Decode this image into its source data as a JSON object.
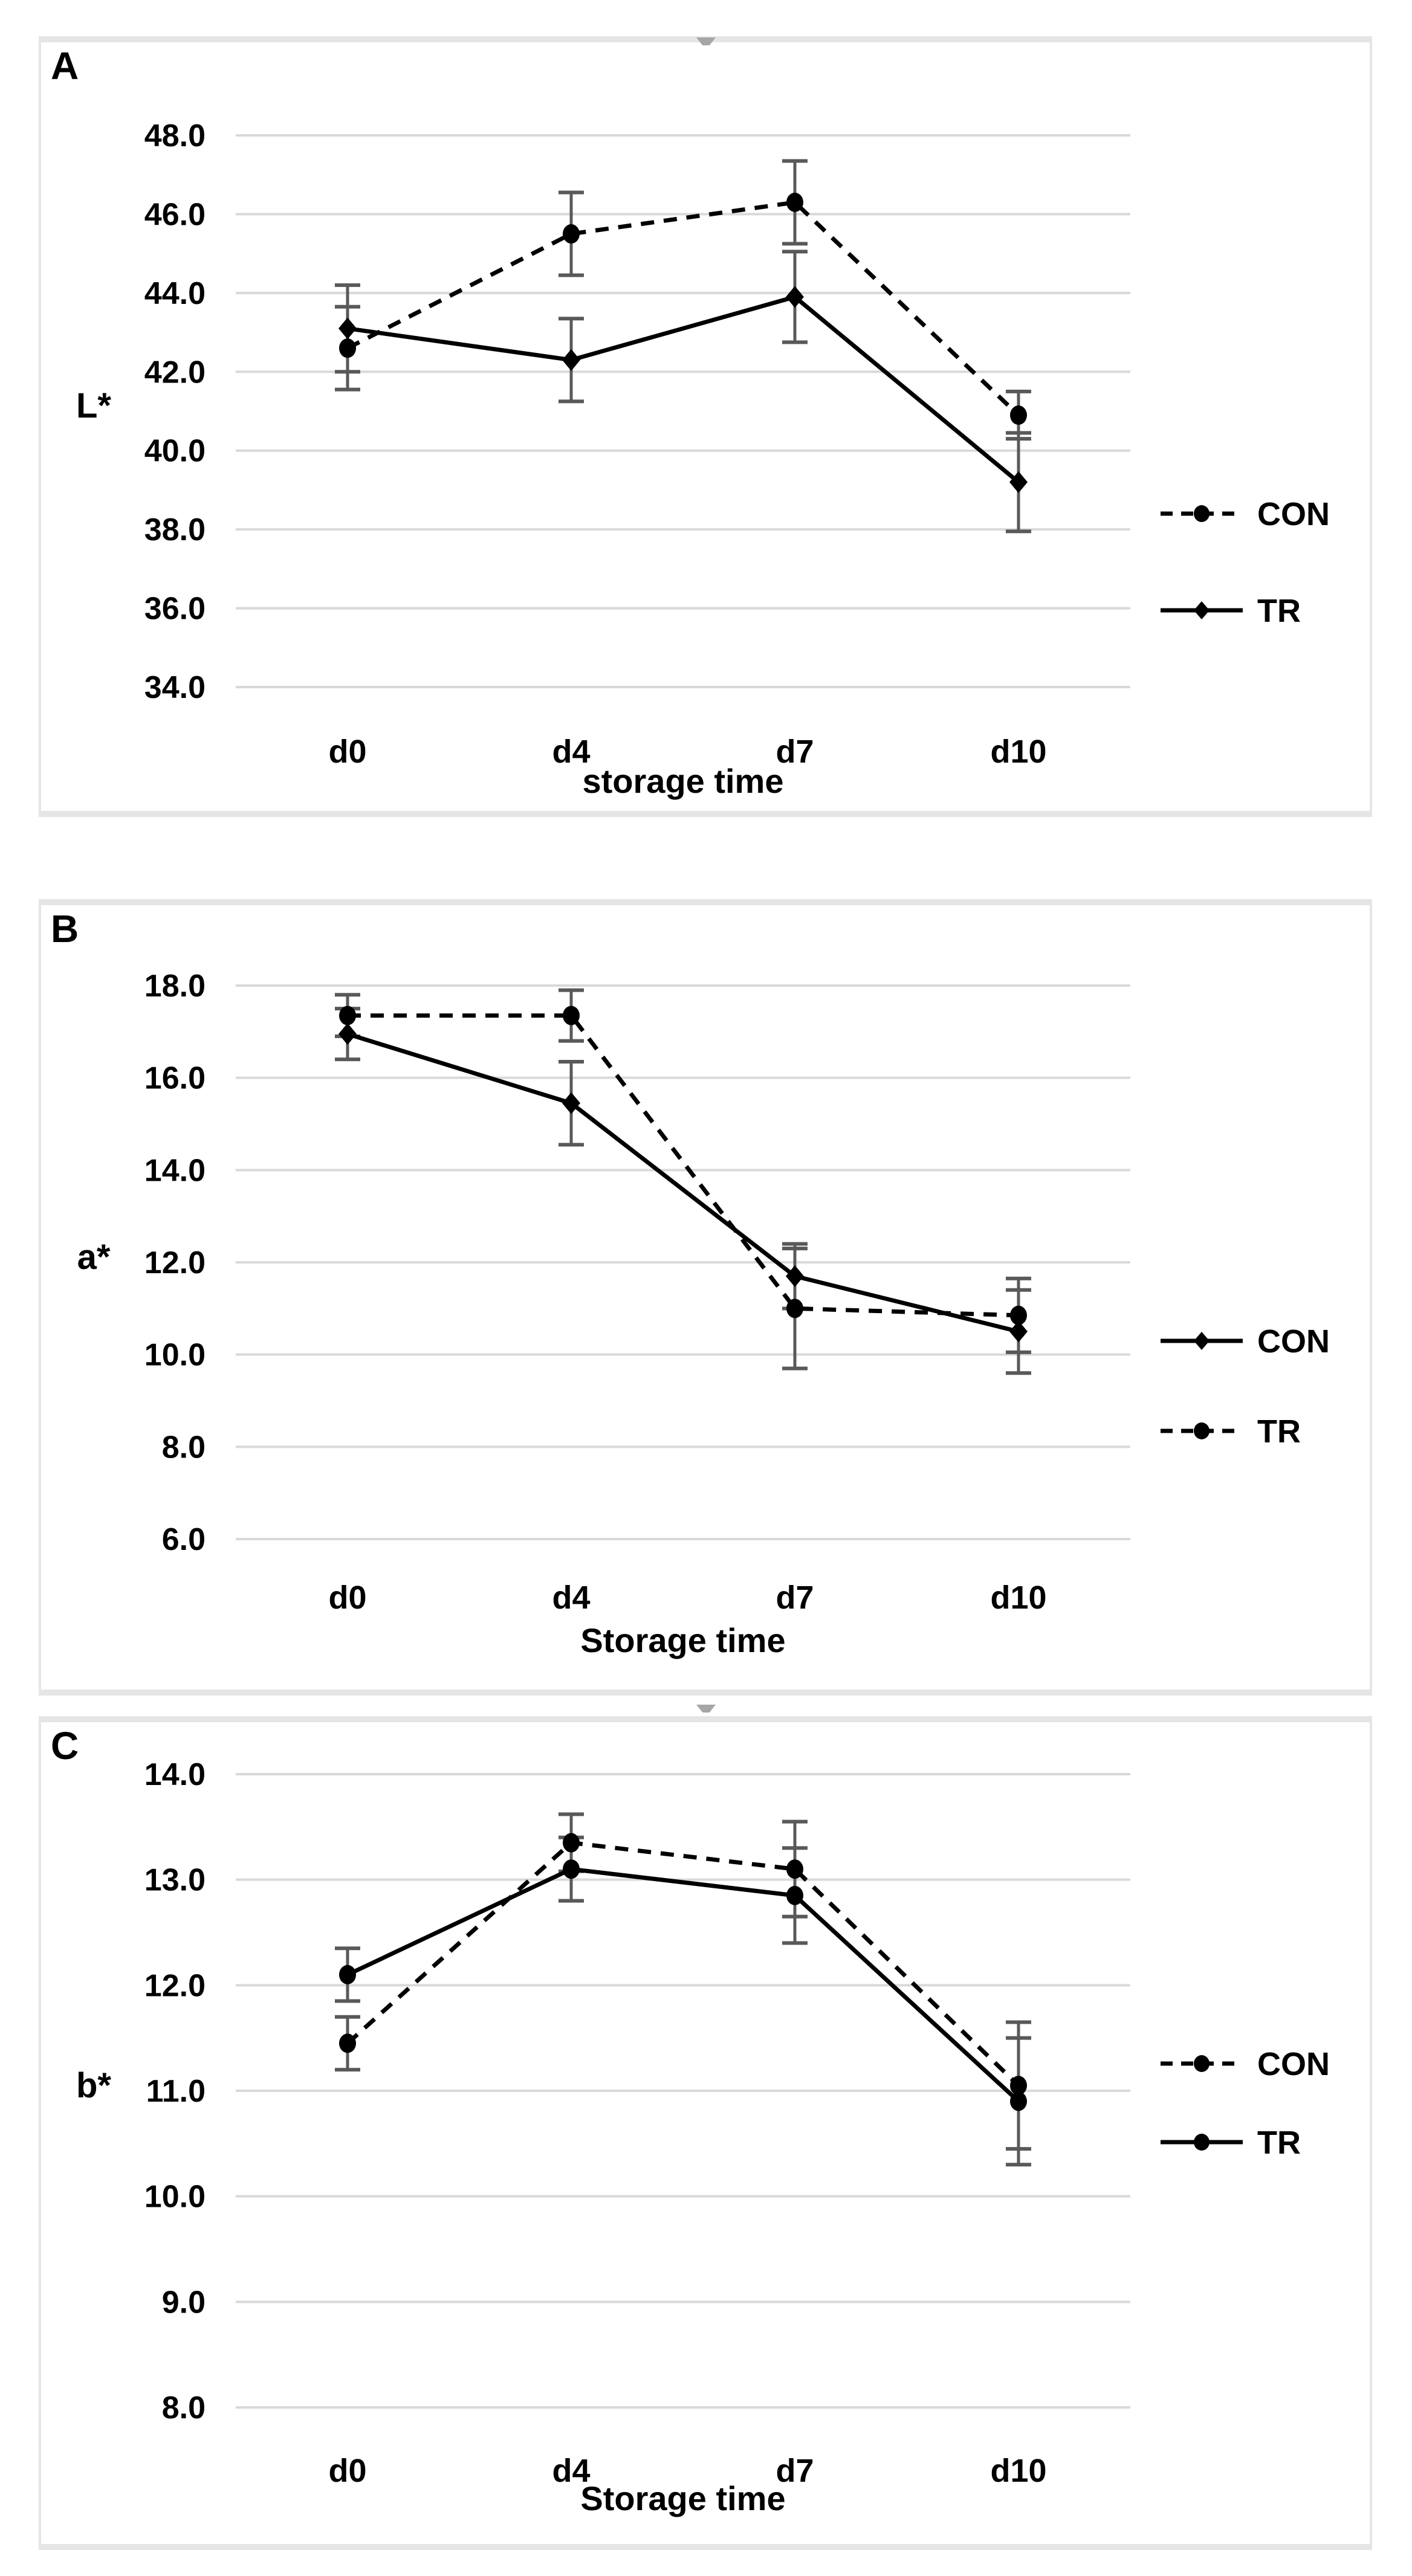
{
  "figure": {
    "description": "Three stacked line charts of meat colour parameters during storage",
    "panel_labels": [
      "A",
      "B",
      "C"
    ]
  },
  "colors": {
    "line": "#000000",
    "marker": "#000000",
    "error_bar": "#595959",
    "gridline": "#d9d9d9",
    "panel_border": "#e5e5e5",
    "text": "#000000"
  },
  "chart_data": [
    {
      "panel": "A",
      "type": "line",
      "title": "",
      "ylabel": "L*",
      "xlabel": "storage time",
      "categories": [
        "d0",
        "d4",
        "d7",
        "d10"
      ],
      "ylim": [
        34.0,
        48.0
      ],
      "ytick_step": 2.0,
      "ytick_labels": [
        "48.0",
        "46.0",
        "44.0",
        "42.0",
        "40.0",
        "38.0",
        "36.0",
        "34.0"
      ],
      "grid": true,
      "legend_position": "right",
      "series": [
        {
          "name": "CON",
          "line": "dashed",
          "marker": "circle",
          "values": [
            42.6,
            45.5,
            46.3,
            40.9
          ],
          "errors": [
            1.05,
            1.05,
            1.05,
            0.6
          ]
        },
        {
          "name": "TR",
          "line": "solid",
          "marker": "diamond",
          "values": [
            43.1,
            42.3,
            43.9,
            39.2
          ],
          "errors": [
            1.1,
            1.05,
            1.15,
            1.25
          ]
        }
      ]
    },
    {
      "panel": "B",
      "type": "line",
      "title": "",
      "ylabel": "a*",
      "xlabel": "Storage time",
      "categories": [
        "d0",
        "d4",
        "d7",
        "d10"
      ],
      "ylim": [
        6.0,
        18.0
      ],
      "ytick_step": 2.0,
      "ytick_labels": [
        "18.0",
        "16.0",
        "14.0",
        "12.0",
        "10.0",
        "8.0",
        "6.0"
      ],
      "grid": true,
      "legend_position": "right",
      "series": [
        {
          "name": "CON",
          "line": "solid",
          "marker": "diamond",
          "values": [
            16.95,
            15.45,
            11.7,
            10.5
          ],
          "errors": [
            0.55,
            0.9,
            0.7,
            0.9
          ]
        },
        {
          "name": "TR",
          "line": "dashed",
          "marker": "circle",
          "values": [
            17.35,
            17.35,
            11.0,
            10.85
          ],
          "errors": [
            0.45,
            0.55,
            1.3,
            0.8
          ]
        }
      ]
    },
    {
      "panel": "C",
      "type": "line",
      "title": "",
      "ylabel": "b*",
      "xlabel": "Storage time",
      "categories": [
        "d0",
        "d4",
        "d7",
        "d10"
      ],
      "ylim": [
        8.0,
        14.0
      ],
      "ytick_step": 1.0,
      "ytick_labels": [
        "14.0",
        "13.0",
        "12.0",
        "11.0",
        "10.0",
        "9.0",
        "8.0"
      ],
      "grid": true,
      "legend_position": "right",
      "series": [
        {
          "name": "CON",
          "line": "dashed",
          "marker": "circle",
          "values": [
            11.45,
            13.35,
            13.1,
            11.05
          ],
          "errors": [
            0.25,
            0.27,
            0.45,
            0.6
          ]
        },
        {
          "name": "TR",
          "line": "solid",
          "marker": "circle",
          "values": [
            12.1,
            13.1,
            12.85,
            10.9
          ],
          "errors": [
            0.25,
            0.3,
            0.45,
            0.6
          ]
        }
      ]
    }
  ]
}
